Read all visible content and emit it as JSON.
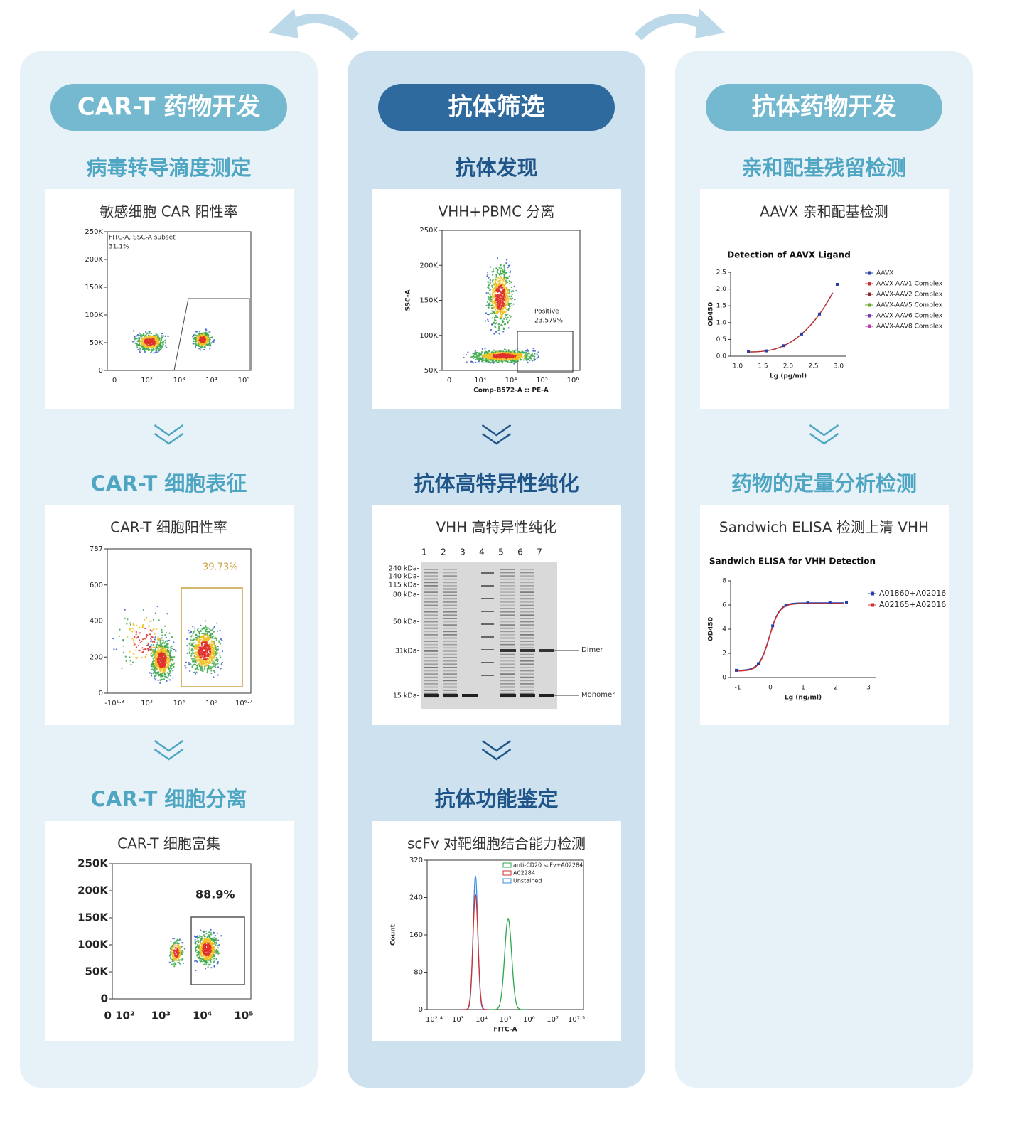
{
  "columns": [
    {
      "title": "CAR-T 药物开发",
      "steps": [
        {
          "title": "病毒转导滴度测定",
          "caption": "敏感细胞 CAR 阳性率",
          "plot": {
            "y_ticks": [
              "250K",
              "200K",
              "150K",
              "100K",
              "50K",
              "0"
            ],
            "x_ticks": [
              "0",
              "10²",
              "10³",
              "10⁴",
              "10⁵"
            ],
            "notes": [
              "FITC-A, SSC-A subset",
              "31.1%"
            ]
          }
        },
        {
          "title": "CAR-T 细胞表征",
          "caption": "CAR-T 细胞阳性率",
          "plot": {
            "y_ticks": [
              "787",
              "600",
              "400",
              "200",
              "0"
            ],
            "x_ticks": [
              "-10¹·³",
              "10³",
              "10⁴",
              "10⁵",
              "10⁶·⁷"
            ],
            "notes": [
              "39.73%"
            ]
          }
        },
        {
          "title": "CAR-T 细胞分离",
          "caption": "CAR-T 细胞富集",
          "plot": {
            "y_ticks": [
              "250K",
              "200K",
              "150K",
              "100K",
              "50K",
              "0"
            ],
            "x_ticks": [
              "0 10²",
              "10³",
              "10⁴",
              "10⁵"
            ],
            "notes": [
              "88.9%"
            ]
          }
        }
      ]
    },
    {
      "title": "抗体筛选",
      "steps": [
        {
          "title": "抗体发现",
          "caption": "VHH+PBMC 分离",
          "plot": {
            "y_ticks": [
              "250K",
              "200K",
              "150K",
              "100K",
              "50K"
            ],
            "x_ticks": [
              "0",
              "10³",
              "10⁴",
              "10⁵",
              "10⁶"
            ],
            "y_label": "SSC-A",
            "x_label": "Comp-B572-A :: PE-A",
            "notes": [
              "Positive",
              "23.579%"
            ]
          }
        },
        {
          "title": "抗体高特异性纯化",
          "caption": "VHH 高特异性纯化",
          "plot": {
            "lanes": [
              "1",
              "2",
              "3",
              "4",
              "5",
              "6",
              "7"
            ],
            "markers": [
              "240 kDa-",
              "140 kDa-",
              "115 kDa-",
              "80 kDa-",
              "50 kDa-",
              "31kDa-",
              "15 kDa-"
            ],
            "notes": [
              "Dimer",
              "Monomer"
            ]
          }
        },
        {
          "title": "抗体功能鉴定",
          "caption": "scFv 对靶细胞结合能力检测",
          "plot": {
            "y_ticks": [
              "320",
              "240",
              "160",
              "80",
              "0"
            ],
            "x_ticks": [
              "10²·⁴",
              "10³",
              "10⁴",
              "10⁵",
              "10⁶",
              "10⁷",
              "10⁷·⁵"
            ],
            "y_label": "Count",
            "x_label": "FITC-A",
            "legend": [
              "anti-CD20 scFv+A02284",
              "A02284",
              "Unstained"
            ]
          }
        }
      ]
    },
    {
      "title": "抗体药物开发",
      "steps": [
        {
          "title": "亲和配基残留检测",
          "caption": "AAVX 亲和配基检测",
          "plot": {
            "title": "Detection of AAVX Ligand",
            "y_ticks": [
              "2.5",
              "2.0",
              "1.5",
              "1.0",
              "0.5",
              "0.0"
            ],
            "x_ticks": [
              "1.0",
              "1.5",
              "2.0",
              "2.5",
              "3.0"
            ],
            "y_label": "OD450",
            "x_label": "Lg (pg/ml)",
            "legend": [
              "AAVX",
              "AAVX-AAV1 Complex",
              "AAVX-AAV2 Complex",
              "AAVX-AAV5 Complex",
              "AAVX-AAV6 Complex",
              "AAVX-AAV8 Complex"
            ]
          }
        },
        {
          "title": "药物的定量分析检测",
          "caption": "Sandwich ELISA 检测上清 VHH",
          "plot": {
            "title": "Sandwich ELISA for VHH Detection",
            "y_ticks": [
              "8",
              "6",
              "4",
              "2",
              "0"
            ],
            "x_ticks": [
              "-1",
              "0",
              "1",
              "2",
              "3"
            ],
            "y_label": "OD450",
            "x_label": "Lg (ng/ml)",
            "legend": [
              "A01860+A02016",
              "A02165+A02016"
            ]
          }
        }
      ]
    }
  ]
}
